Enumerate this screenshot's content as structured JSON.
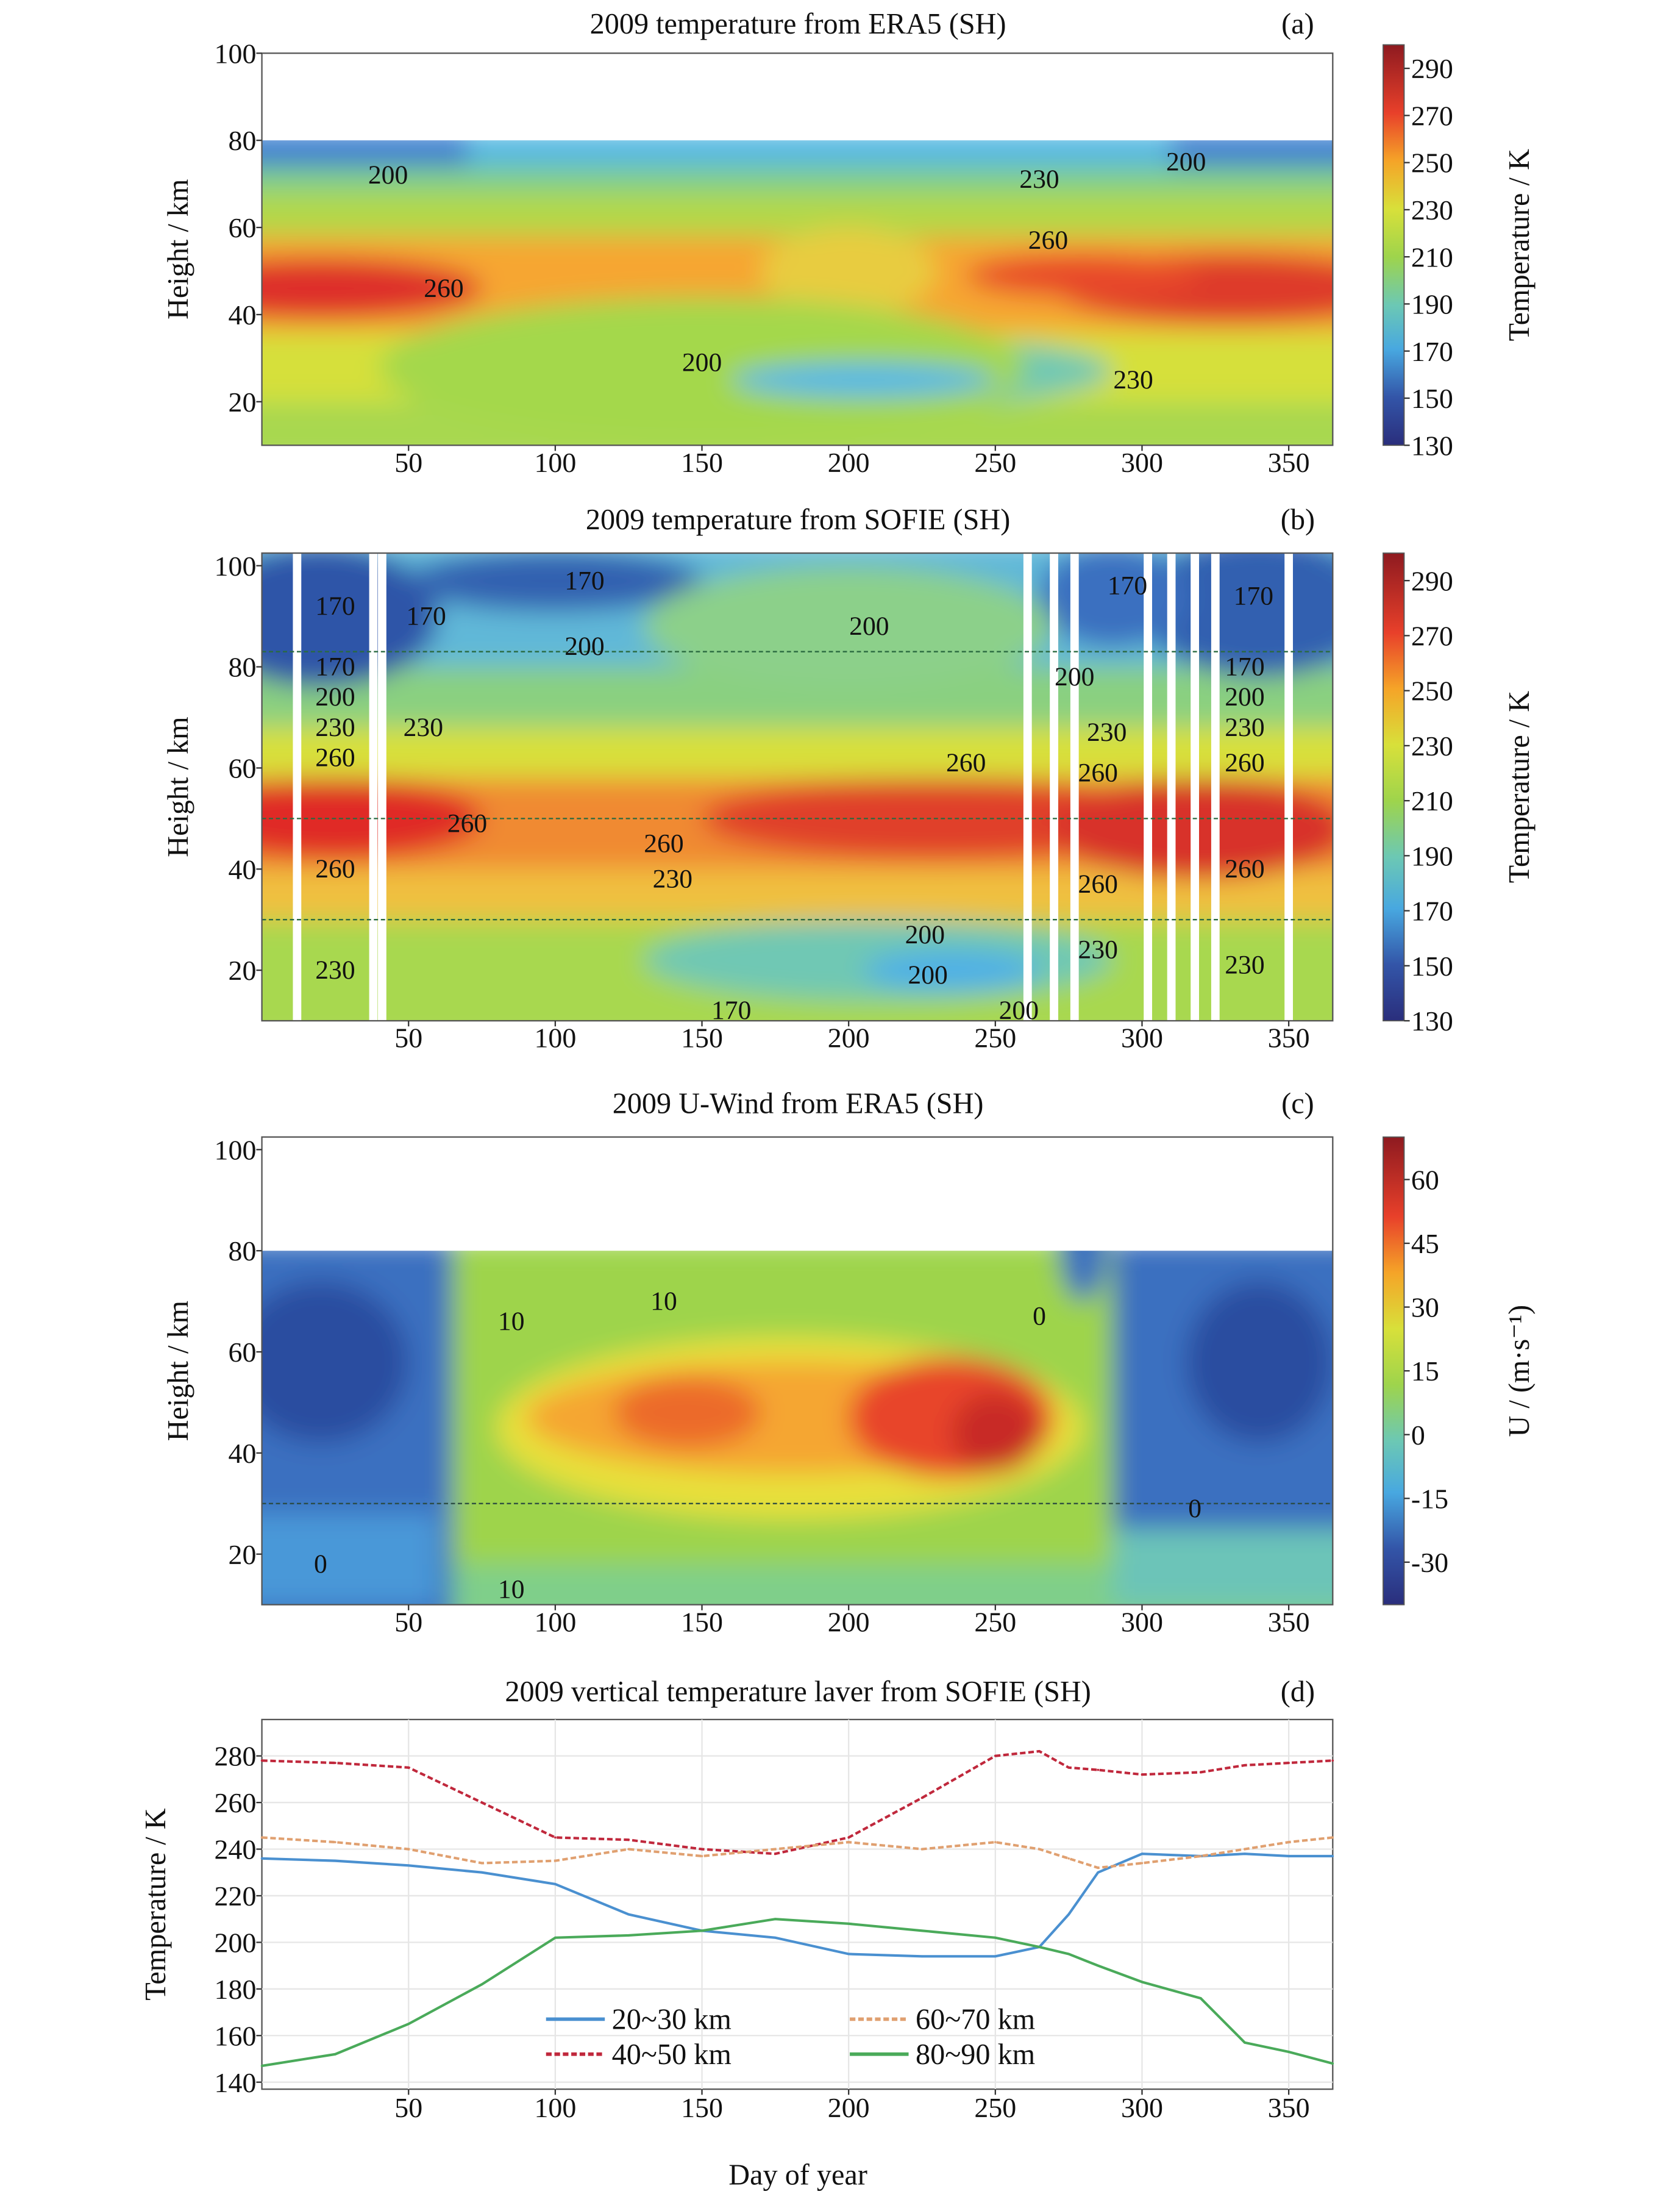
{
  "chart_data": [
    {
      "type": "heatmap",
      "panel": "a",
      "title": "2009 temperature from ERA5 (SH)",
      "panel_label": "(a)",
      "xlabel": "",
      "ylabel": "Height / km",
      "xlim": [
        0,
        365
      ],
      "ylim": [
        10,
        100
      ],
      "data_top_km": 80,
      "xticks": [
        50,
        100,
        150,
        200,
        250,
        300,
        350
      ],
      "yticks": [
        20,
        40,
        60,
        80,
        100
      ],
      "colorbar": {
        "label": "Temperature / K",
        "range": [
          130,
          300
        ],
        "ticks": [
          130,
          150,
          170,
          190,
          210,
          230,
          250,
          270,
          290
        ]
      },
      "contour_labels": [
        {
          "text": "200",
          "day": 43,
          "km": 72
        },
        {
          "text": "260",
          "day": 62,
          "km": 46
        },
        {
          "text": "200",
          "day": 150,
          "km": 29
        },
        {
          "text": "230",
          "day": 265,
          "km": 71
        },
        {
          "text": "200",
          "day": 315,
          "km": 75
        },
        {
          "text": "260",
          "day": 268,
          "km": 57
        },
        {
          "text": "230",
          "day": 297,
          "km": 25
        }
      ]
    },
    {
      "type": "heatmap",
      "panel": "b",
      "title": "2009 temperature from SOFIE (SH)",
      "panel_label": "(b)",
      "xlabel": "",
      "ylabel": "Height / km",
      "xlim": [
        0,
        365
      ],
      "ylim": [
        10,
        100
      ],
      "xticks": [
        50,
        100,
        150,
        200,
        250,
        300,
        350
      ],
      "yticks": [
        20,
        40,
        60,
        80,
        100
      ],
      "colorbar": {
        "label": "Temperature / K",
        "range": [
          130,
          300
        ],
        "ticks": [
          130,
          150,
          170,
          190,
          210,
          230,
          250,
          270,
          290
        ]
      },
      "contour_labels": [
        {
          "text": "170",
          "day": 25,
          "km": 92
        },
        {
          "text": "170",
          "day": 56,
          "km": 90
        },
        {
          "text": "170",
          "day": 110,
          "km": 97
        },
        {
          "text": "200",
          "day": 110,
          "km": 84
        },
        {
          "text": "200",
          "day": 207,
          "km": 88
        },
        {
          "text": "170",
          "day": 295,
          "km": 96
        },
        {
          "text": "170",
          "day": 338,
          "km": 94
        },
        {
          "text": "200",
          "day": 277,
          "km": 78
        },
        {
          "text": "170",
          "day": 25,
          "km": 80
        },
        {
          "text": "200",
          "day": 25,
          "km": 74
        },
        {
          "text": "230",
          "day": 25,
          "km": 68
        },
        {
          "text": "260",
          "day": 25,
          "km": 62
        },
        {
          "text": "230",
          "day": 55,
          "km": 68
        },
        {
          "text": "260",
          "day": 70,
          "km": 49
        },
        {
          "text": "260",
          "day": 137,
          "km": 45
        },
        {
          "text": "230",
          "day": 140,
          "km": 38
        },
        {
          "text": "260",
          "day": 240,
          "km": 61
        },
        {
          "text": "230",
          "day": 288,
          "km": 67
        },
        {
          "text": "260",
          "day": 285,
          "km": 59
        },
        {
          "text": "170",
          "day": 335,
          "km": 80
        },
        {
          "text": "200",
          "day": 335,
          "km": 74
        },
        {
          "text": "230",
          "day": 335,
          "km": 68
        },
        {
          "text": "260",
          "day": 335,
          "km": 61
        },
        {
          "text": "260",
          "day": 25,
          "km": 40
        },
        {
          "text": "260",
          "day": 285,
          "km": 37
        },
        {
          "text": "200",
          "day": 227,
          "km": 19
        },
        {
          "text": "260",
          "day": 335,
          "km": 40
        },
        {
          "text": "200",
          "day": 226,
          "km": 27
        },
        {
          "text": "230",
          "day": 285,
          "km": 24
        },
        {
          "text": "230",
          "day": 335,
          "km": 21
        },
        {
          "text": "230",
          "day": 25,
          "km": 20
        },
        {
          "text": "170",
          "day": 160,
          "km": 12
        },
        {
          "text": "200",
          "day": 258,
          "km": 12
        }
      ]
    },
    {
      "type": "heatmap",
      "panel": "c",
      "title": "2009 U-Wind from ERA5 (SH)",
      "panel_label": "(c)",
      "xlabel": "",
      "ylabel": "Height / km",
      "xlim": [
        0,
        365
      ],
      "ylim": [
        10,
        100
      ],
      "data_top_km": 80,
      "xticks": [
        50,
        100,
        150,
        200,
        250,
        300,
        350
      ],
      "yticks": [
        20,
        40,
        60,
        80,
        100
      ],
      "colorbar": {
        "label": "U / (m·s⁻¹)",
        "range": [
          -40,
          70
        ],
        "ticks": [
          -30,
          -15,
          0,
          15,
          30,
          45,
          60
        ]
      },
      "contour_labels": [
        {
          "text": "10",
          "day": 85,
          "km": 66
        },
        {
          "text": "10",
          "day": 137,
          "km": 70
        },
        {
          "text": "0",
          "day": 265,
          "km": 67
        },
        {
          "text": "10",
          "day": 85,
          "km": 13
        },
        {
          "text": "0",
          "day": 20,
          "km": 18
        },
        {
          "text": "0",
          "day": 318,
          "km": 29
        }
      ]
    },
    {
      "type": "line",
      "panel": "d",
      "title": "2009 vertical temperature laver from SOFIE (SH)",
      "panel_label": "(d)",
      "xlabel": "Day of year",
      "ylabel": "Temperature / K",
      "xlim": [
        0,
        365
      ],
      "ylim": [
        138,
        290
      ],
      "xticks": [
        50,
        100,
        150,
        200,
        250,
        300,
        350
      ],
      "yticks": [
        140,
        160,
        180,
        200,
        220,
        240,
        260,
        280
      ],
      "x": [
        0,
        25,
        50,
        75,
        100,
        125,
        150,
        175,
        200,
        225,
        250,
        265,
        275,
        285,
        300,
        320,
        335,
        350,
        365
      ],
      "series": [
        {
          "name": "20~30 km",
          "color": "#4a90d0",
          "dash": "none",
          "values": [
            236,
            235,
            233,
            230,
            225,
            212,
            205,
            202,
            195,
            194,
            194,
            198,
            212,
            230,
            238,
            237,
            238,
            237,
            237
          ]
        },
        {
          "name": "40~50 km",
          "color": "#c0283c",
          "dash": "dash",
          "values": [
            278,
            277,
            275,
            260,
            245,
            244,
            240,
            238,
            245,
            262,
            280,
            282,
            275,
            274,
            272,
            273,
            276,
            277,
            278
          ]
        },
        {
          "name": "60~70 km",
          "color": "#e0a070",
          "dash": "dash",
          "values": [
            245,
            243,
            240,
            234,
            235,
            240,
            237,
            240,
            243,
            240,
            243,
            240,
            236,
            232,
            234,
            237,
            240,
            243,
            245
          ]
        },
        {
          "name": "80~90 km",
          "color": "#4aaa5a",
          "dash": "none",
          "values": [
            147,
            152,
            165,
            182,
            202,
            203,
            205,
            210,
            208,
            205,
            202,
            198,
            195,
            190,
            183,
            176,
            157,
            153,
            148
          ]
        }
      ]
    }
  ]
}
